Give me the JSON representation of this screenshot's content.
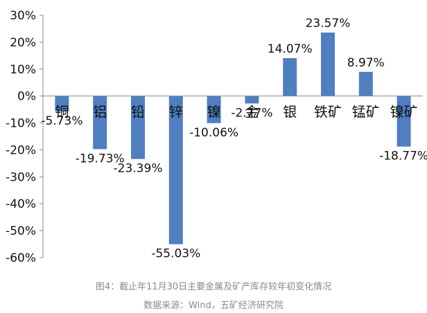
{
  "chart_data": {
    "type": "bar",
    "categories": [
      "铜",
      "铝",
      "铅",
      "锌",
      "镍",
      "金",
      "银",
      "铁矿",
      "锰矿",
      "镍矿"
    ],
    "values": [
      -5.73,
      -19.73,
      -23.39,
      -55.03,
      -10.06,
      -2.77,
      14.07,
      23.57,
      8.97,
      -18.77
    ],
    "value_labels": [
      "-5.73%",
      "-19.73%",
      "-23.39%",
      "-55.03%",
      "-10.06%",
      "-2.77%",
      "14.07%",
      "23.57%",
      "8.97%",
      "-18.77%"
    ],
    "y_ticks": [
      "30%",
      "20%",
      "10%",
      "0%",
      "-10%",
      "-20%",
      "-30%",
      "-40%",
      "-50%",
      "-60%"
    ],
    "ylim": [
      -60,
      30
    ],
    "grid": false,
    "bar_color": "#4f7fc1"
  },
  "caption": {
    "line1": "图4：截止年11月30日主要金属及矿产库存较年初变化情况",
    "line2": "数据来源：Wind，五矿经济研究院"
  }
}
